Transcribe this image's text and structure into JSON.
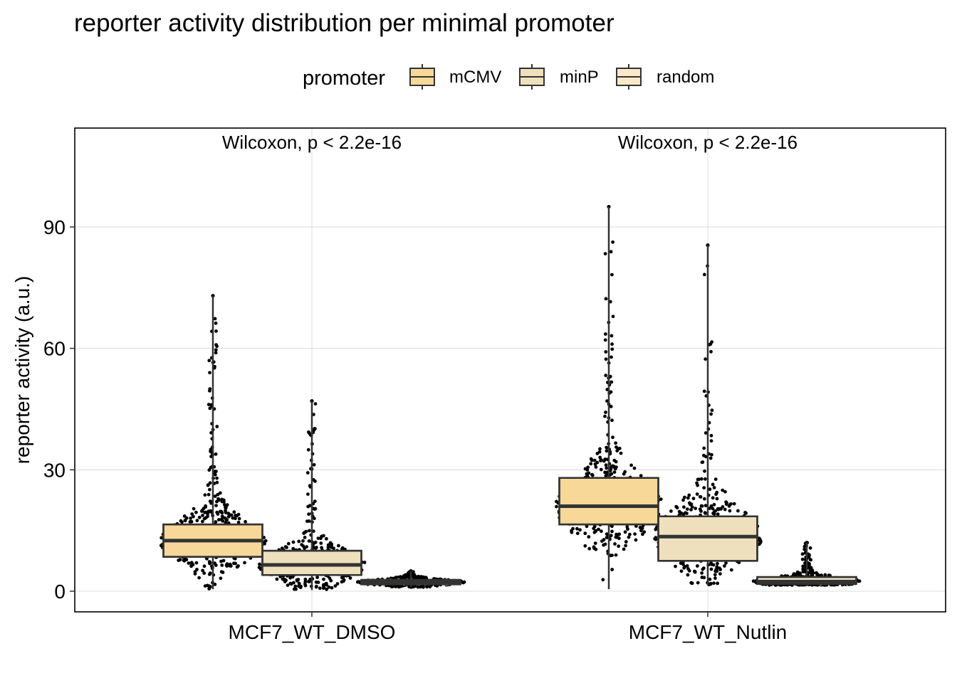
{
  "chart_data": {
    "type": "box",
    "title": "reporter activity distribution per minimal promoter",
    "xlabel": "",
    "ylabel": "reporter activity (a.u.)",
    "ylim": [
      -5,
      114
    ],
    "yticks": [
      0,
      30,
      60,
      90
    ],
    "grid": true,
    "legend": {
      "title": "promoter",
      "position": "top",
      "entries": [
        "mCMV",
        "minP",
        "random"
      ]
    },
    "colors": {
      "mCMV": "#f7d898",
      "minP": "#efe0bd",
      "random": "#fae9c9",
      "points": "#000000",
      "inner_points": "#c9b07a",
      "box_line": "#333333"
    },
    "categories": [
      "MCF7_WT_DMSO",
      "MCF7_WT_Nutlin"
    ],
    "annotations": [
      "Wilcoxon, p < 2.2e-16",
      "Wilcoxon, p < 2.2e-16"
    ],
    "series": [
      {
        "name": "mCMV",
        "boxes": [
          {
            "min": 0.5,
            "q1": 8.5,
            "median": 12.5,
            "q3": 16.5,
            "max": 73
          },
          {
            "min": 0.5,
            "q1": 16.5,
            "median": 21,
            "q3": 28,
            "max": 95
          }
        ]
      },
      {
        "name": "minP",
        "boxes": [
          {
            "min": 0.3,
            "q1": 4,
            "median": 6.5,
            "q3": 10,
            "max": 47
          },
          {
            "min": 1.5,
            "q1": 7.5,
            "median": 13.5,
            "q3": 18.5,
            "max": 85.5
          }
        ]
      },
      {
        "name": "random",
        "boxes": [
          {
            "min": 1,
            "q1": 1.7,
            "median": 2.2,
            "q3": 2.8,
            "max": 5
          },
          {
            "min": 1.5,
            "q1": 1.8,
            "median": 2.4,
            "q3": 3.5,
            "max": 12
          }
        ]
      }
    ]
  }
}
